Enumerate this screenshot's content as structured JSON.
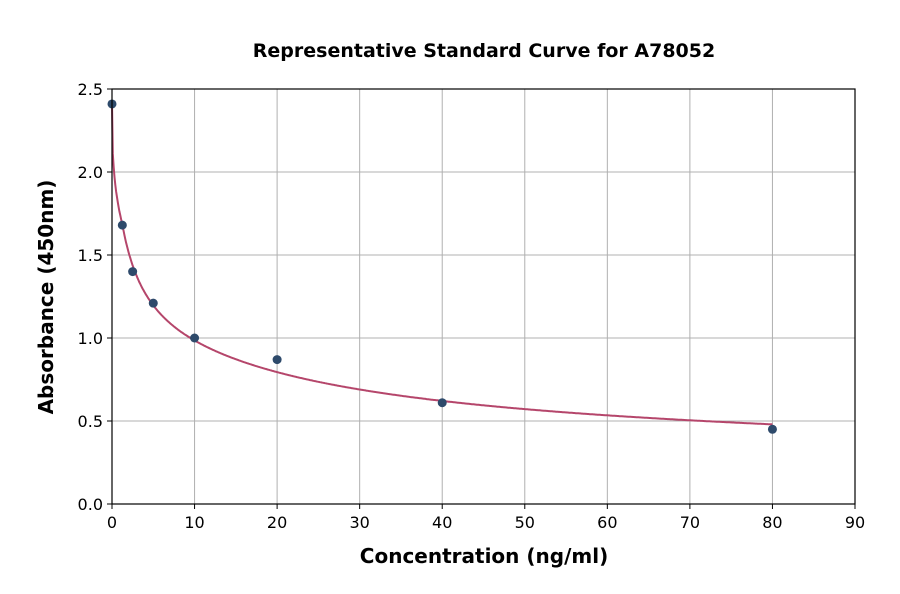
{
  "chart_data": {
    "type": "scatter",
    "title": "Representative Standard Curve for A78052",
    "xlabel": "Concentration (ng/ml)",
    "ylabel": "Absorbance (450nm)",
    "xlim": [
      0,
      90
    ],
    "ylim": [
      0,
      2.5
    ],
    "xticks": [
      "0",
      "10",
      "20",
      "30",
      "40",
      "50",
      "60",
      "70",
      "80",
      "90"
    ],
    "yticks": [
      "0.0",
      "0.5",
      "1.0",
      "1.5",
      "2.0",
      "2.5"
    ],
    "grid": true,
    "points": [
      {
        "x": 0,
        "y": 2.41
      },
      {
        "x": 1.25,
        "y": 1.68
      },
      {
        "x": 2.5,
        "y": 1.4
      },
      {
        "x": 5,
        "y": 1.21
      },
      {
        "x": 10,
        "y": 1.0
      },
      {
        "x": 20,
        "y": 0.87
      },
      {
        "x": 40,
        "y": 0.61
      },
      {
        "x": 80,
        "y": 0.45
      }
    ],
    "point_color": "#2e4a6b",
    "curve_color": "#b5466b"
  }
}
